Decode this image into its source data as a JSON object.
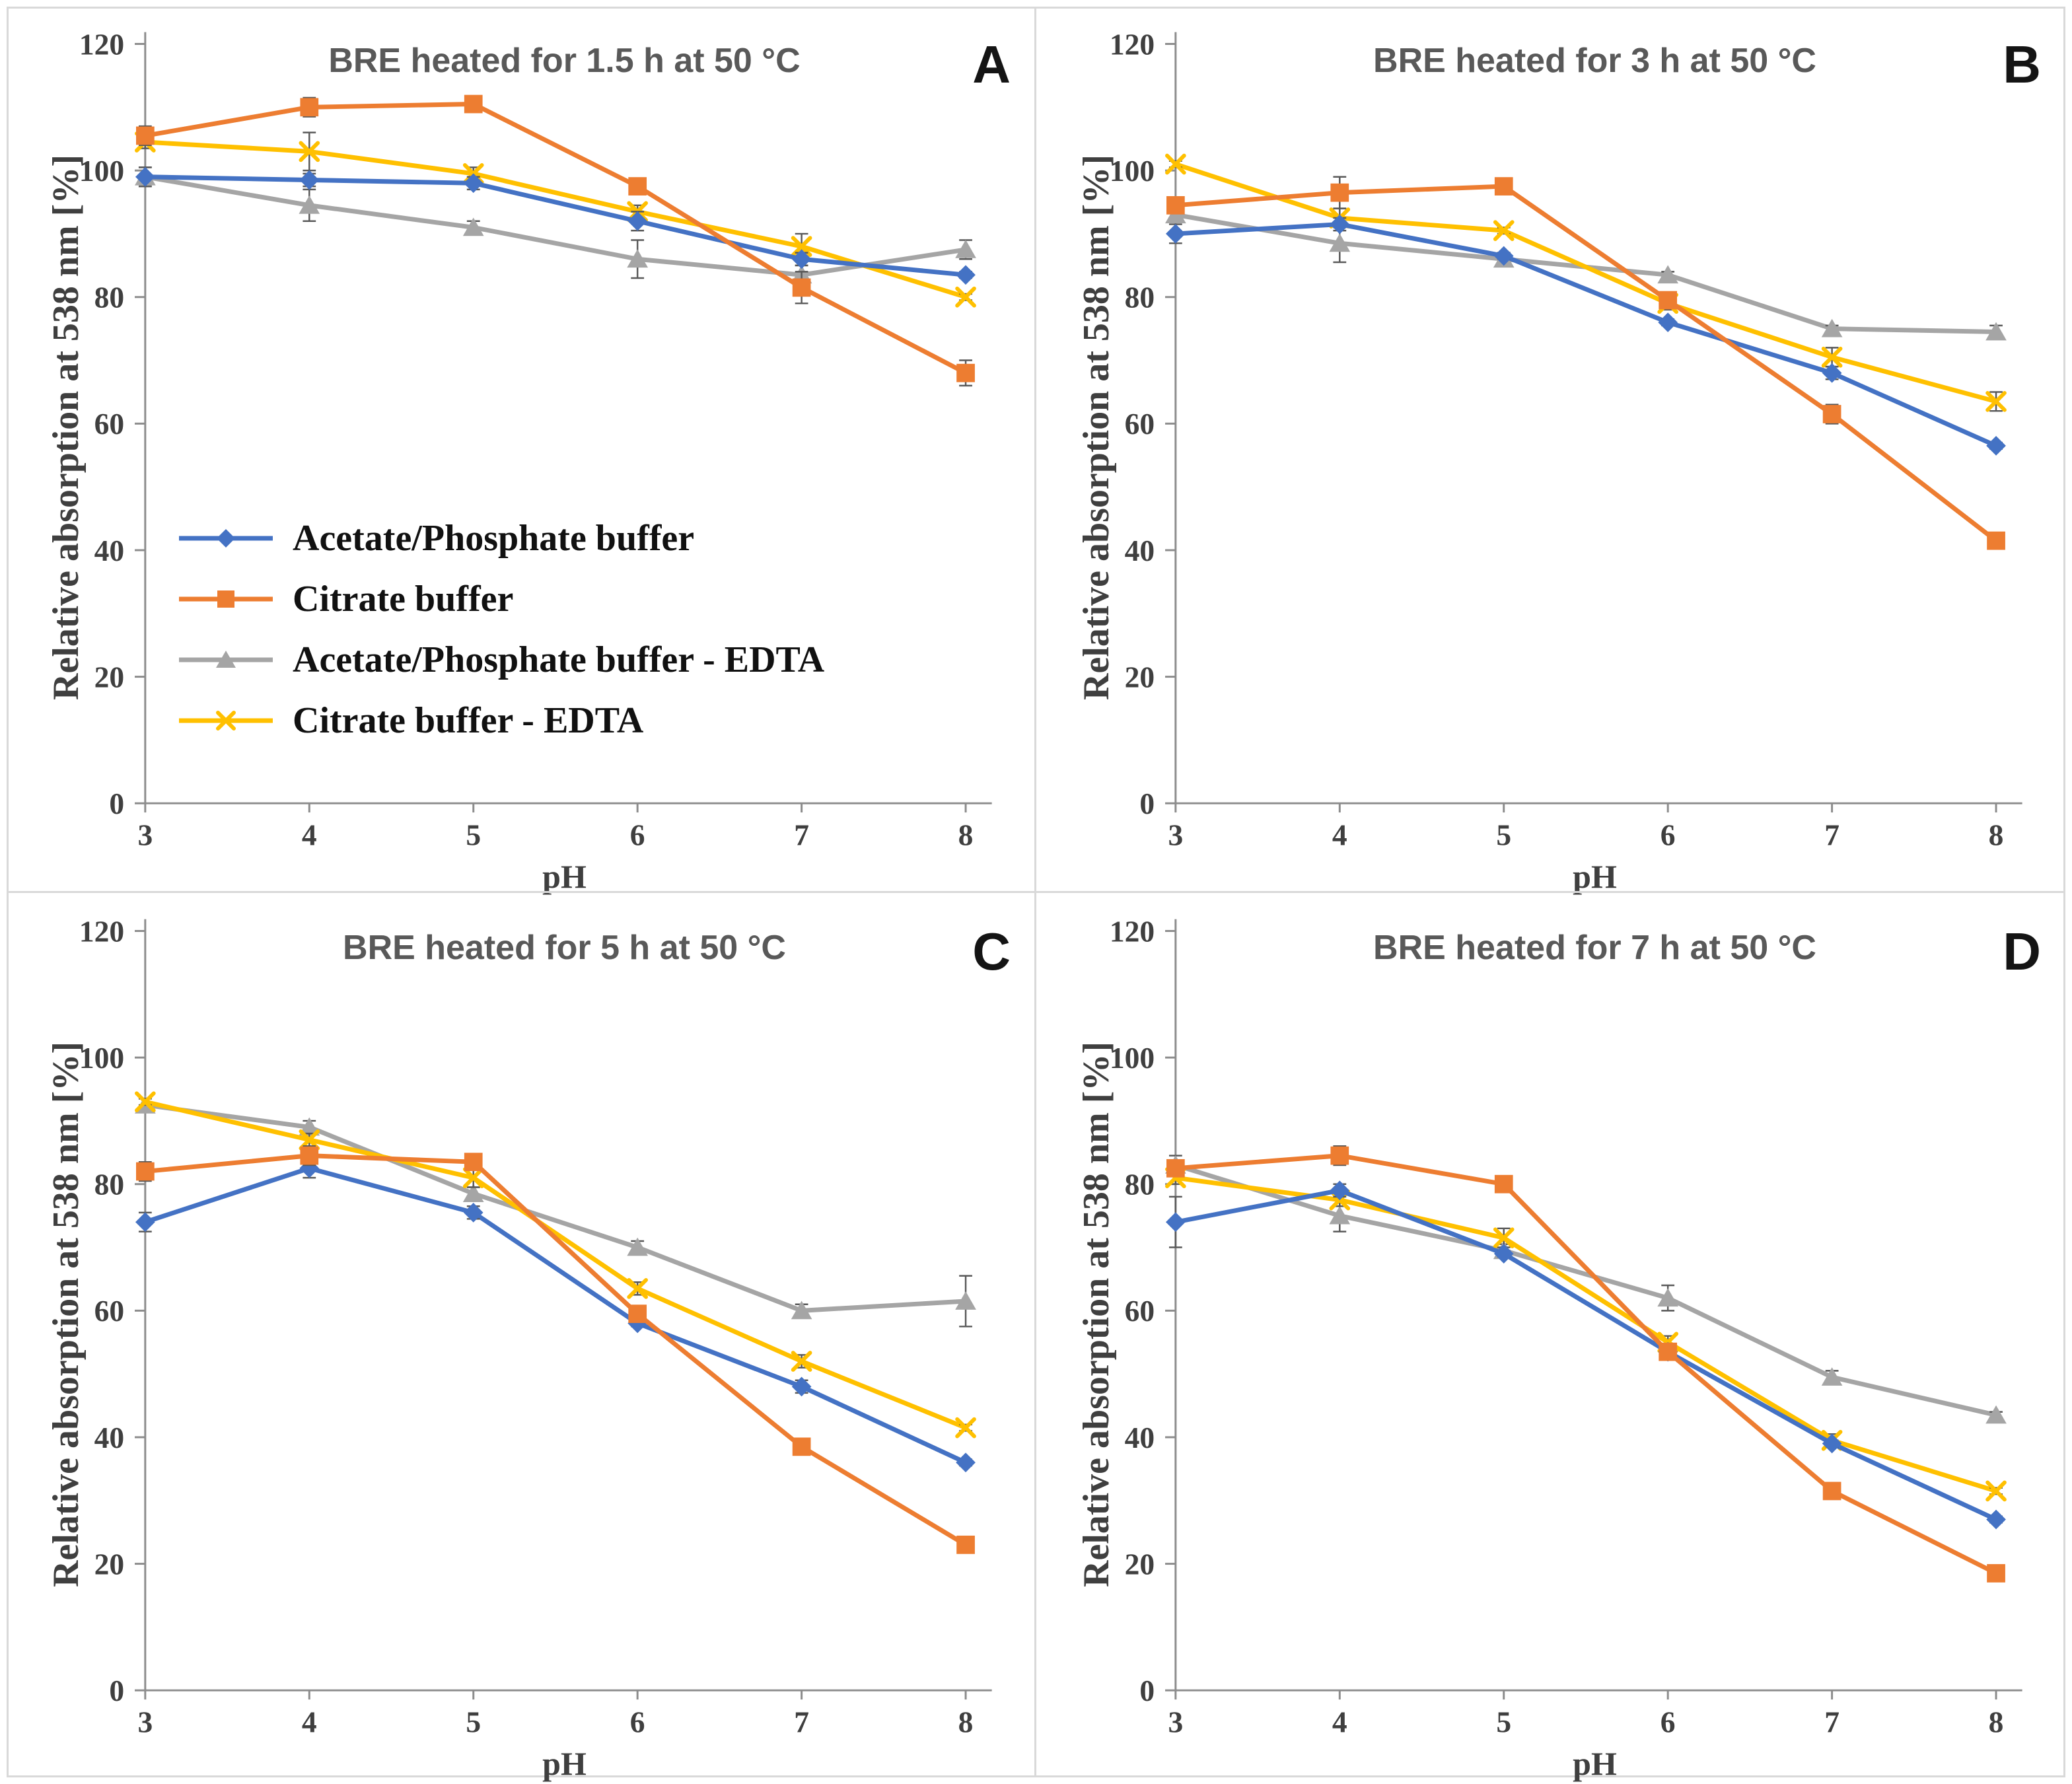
{
  "figure": {
    "ylabel": "Relative absorption at 538 nm [%]",
    "xlabel": "pH",
    "accent_colors": {
      "acetate_phosphate": "#4472C4",
      "citrate": "#ED7D31",
      "acetate_phosphate_edta": "#A5A5A5",
      "citrate_edta": "#FFC000",
      "error_bar": "#595959",
      "axis_line": "#8C8C8C",
      "tick_text": "#3F3F3F",
      "title_text": "#595959"
    }
  },
  "legend": {
    "items": [
      {
        "label": "Acetate/Phosphate buffer",
        "marker": "diamond",
        "color": "#4472C4"
      },
      {
        "label": "Citrate buffer",
        "marker": "square",
        "color": "#ED7D31"
      },
      {
        "label": "Acetate/Phosphate buffer - EDTA",
        "marker": "triangle",
        "color": "#A5A5A5"
      },
      {
        "label": "Citrate buffer - EDTA",
        "marker": "x-cross",
        "color": "#FFC000"
      }
    ]
  },
  "axis": {
    "ylim": [
      0,
      120
    ],
    "yticks": [
      0,
      20,
      40,
      60,
      80,
      100,
      120
    ],
    "xticks": [
      3,
      4,
      5,
      6,
      7,
      8
    ]
  },
  "chart_data": [
    {
      "id": "A",
      "type": "line",
      "title": "BRE heated for 1.5 h at 50 °C",
      "letter": "A",
      "xlabel": "pH",
      "ylabel": "Relative absorption at 538 nm [%]",
      "ylim": [
        0,
        120
      ],
      "x": [
        3,
        4,
        5,
        6,
        7,
        8
      ],
      "series": [
        {
          "name": "Acetate/Phosphate buffer",
          "marker": "diamond",
          "color": "#4472C4",
          "values": [
            99,
            98.5,
            98,
            92,
            86,
            83.5
          ],
          "err": [
            1.5,
            1,
            1,
            1.5,
            1,
            0.5
          ]
        },
        {
          "name": "Citrate buffer",
          "marker": "square",
          "color": "#ED7D31",
          "values": [
            105.5,
            110,
            110.5,
            97.5,
            81.5,
            68
          ],
          "err": [
            1.5,
            1.5,
            1,
            0.5,
            2.5,
            2
          ]
        },
        {
          "name": "Acetate/Phosphate buffer - EDTA",
          "marker": "triangle",
          "color": "#A5A5A5",
          "values": [
            99,
            94.5,
            91,
            86,
            83.5,
            87.5
          ],
          "err": [
            1.5,
            2.5,
            1,
            3,
            1.5,
            1.5
          ]
        },
        {
          "name": "Citrate buffer - EDTA",
          "marker": "x-cross",
          "color": "#FFC000",
          "values": [
            104.5,
            103,
            99.5,
            93.5,
            88,
            80
          ],
          "err": [
            1,
            3,
            1,
            1,
            2,
            0.5
          ]
        }
      ],
      "show_legend": true
    },
    {
      "id": "B",
      "type": "line",
      "title": "BRE heated for 3 h at 50 °C",
      "letter": "B",
      "xlabel": "pH",
      "ylabel": "Relative absorption at 538 nm [%]",
      "ylim": [
        0,
        120
      ],
      "x": [
        3,
        4,
        5,
        6,
        7,
        8
      ],
      "series": [
        {
          "name": "Acetate/Phosphate buffer",
          "marker": "diamond",
          "color": "#4472C4",
          "values": [
            90,
            91.5,
            86.5,
            76,
            68,
            56.5
          ],
          "err": [
            1.5,
            1,
            0.5,
            0.5,
            1,
            0.5
          ]
        },
        {
          "name": "Citrate buffer",
          "marker": "square",
          "color": "#ED7D31",
          "values": [
            94.5,
            96.5,
            97.5,
            79.5,
            61.5,
            41.5
          ],
          "err": [
            0.5,
            2.5,
            1,
            0.5,
            1.5,
            1
          ]
        },
        {
          "name": "Acetate/Phosphate buffer - EDTA",
          "marker": "triangle",
          "color": "#A5A5A5",
          "values": [
            93,
            88.5,
            86,
            83.5,
            75,
            74.5
          ],
          "err": [
            0.5,
            3,
            1,
            0.5,
            0.5,
            1
          ]
        },
        {
          "name": "Citrate buffer - EDTA",
          "marker": "x-cross",
          "color": "#FFC000",
          "values": [
            101,
            92.5,
            90.5,
            79,
            70.5,
            63.5
          ],
          "err": [
            0.5,
            1.5,
            0.5,
            1,
            1.5,
            1.5
          ]
        }
      ],
      "show_legend": false
    },
    {
      "id": "C",
      "type": "line",
      "title": "BRE heated for 5 h at 50 °C",
      "letter": "C",
      "xlabel": "pH",
      "ylabel": "Relative absorption at 538 nm [%]",
      "ylim": [
        0,
        120
      ],
      "x": [
        3,
        4,
        5,
        6,
        7,
        8
      ],
      "series": [
        {
          "name": "Acetate/Phosphate buffer",
          "marker": "diamond",
          "color": "#4472C4",
          "values": [
            74,
            82.5,
            75.5,
            58,
            48,
            36
          ],
          "err": [
            1.5,
            1.5,
            1,
            0.5,
            1,
            0.5
          ]
        },
        {
          "name": "Citrate buffer",
          "marker": "square",
          "color": "#ED7D31",
          "values": [
            82,
            84.5,
            83.5,
            59.5,
            38.5,
            23
          ],
          "err": [
            1.5,
            1.5,
            1,
            0.5,
            0.5,
            0.5
          ]
        },
        {
          "name": "Acetate/Phosphate buffer - EDTA",
          "marker": "triangle",
          "color": "#A5A5A5",
          "values": [
            92.5,
            89,
            78.5,
            70,
            60,
            61.5
          ],
          "err": [
            1,
            1,
            1,
            1,
            1,
            4
          ]
        },
        {
          "name": "Citrate buffer - EDTA",
          "marker": "x-cross",
          "color": "#FFC000",
          "values": [
            93,
            87,
            81,
            63.5,
            52,
            41.5
          ],
          "err": [
            0.5,
            1,
            1.5,
            1,
            1,
            0.5
          ]
        }
      ],
      "show_legend": false
    },
    {
      "id": "D",
      "type": "line",
      "title": "BRE heated for 7 h at 50 °C",
      "letter": "D",
      "xlabel": "pH",
      "ylabel": "Relative absorption at 538 nm [%]",
      "ylim": [
        0,
        120
      ],
      "x": [
        3,
        4,
        5,
        6,
        7,
        8
      ],
      "series": [
        {
          "name": "Acetate/Phosphate buffer",
          "marker": "diamond",
          "color": "#4472C4",
          "values": [
            74,
            79,
            69,
            53.5,
            39,
            27
          ],
          "err": [
            4,
            1,
            0.5,
            0.5,
            0.5,
            0.5
          ]
        },
        {
          "name": "Citrate buffer",
          "marker": "square",
          "color": "#ED7D31",
          "values": [
            82.5,
            84.5,
            80,
            53.5,
            31.5,
            18.5
          ],
          "err": [
            1,
            1.5,
            1,
            0.5,
            0.5,
            0.5
          ]
        },
        {
          "name": "Acetate/Phosphate buffer - EDTA",
          "marker": "triangle",
          "color": "#A5A5A5",
          "values": [
            83,
            75,
            69.5,
            62,
            49.5,
            43.5
          ],
          "err": [
            1.5,
            2.5,
            1,
            2,
            1,
            0.5
          ]
        },
        {
          "name": "Citrate buffer - EDTA",
          "marker": "x-cross",
          "color": "#FFC000",
          "values": [
            81,
            77.5,
            71.5,
            55,
            39.5,
            31.5
          ],
          "err": [
            1,
            1,
            1.5,
            1,
            1,
            0.5
          ]
        }
      ],
      "show_legend": false
    }
  ]
}
